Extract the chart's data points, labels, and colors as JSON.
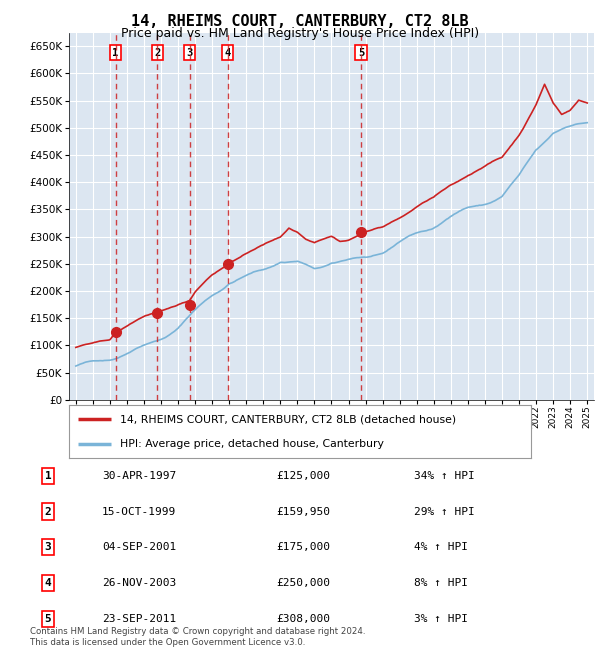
{
  "title": "14, RHEIMS COURT, CANTERBURY, CT2 8LB",
  "subtitle": "Price paid vs. HM Land Registry's House Price Index (HPI)",
  "ylim": [
    0,
    675000
  ],
  "yticks": [
    0,
    50000,
    100000,
    150000,
    200000,
    250000,
    300000,
    350000,
    400000,
    450000,
    500000,
    550000,
    600000,
    650000
  ],
  "plot_bg_color": "#dce6f1",
  "grid_color": "#ffffff",
  "sale_dates_x": [
    1997.33,
    1999.79,
    2001.67,
    2003.9,
    2011.73
  ],
  "sale_prices_y": [
    125000,
    159950,
    175000,
    250000,
    308000
  ],
  "sale_labels": [
    "1",
    "2",
    "3",
    "4",
    "5"
  ],
  "legend_line1": "14, RHEIMS COURT, CANTERBURY, CT2 8LB (detached house)",
  "legend_line2": "HPI: Average price, detached house, Canterbury",
  "table_data": [
    [
      "1",
      "30-APR-1997",
      "£125,000",
      "34% ↑ HPI"
    ],
    [
      "2",
      "15-OCT-1999",
      "£159,950",
      "29% ↑ HPI"
    ],
    [
      "3",
      "04-SEP-2001",
      "£175,000",
      "4% ↑ HPI"
    ],
    [
      "4",
      "26-NOV-2003",
      "£250,000",
      "8% ↑ HPI"
    ],
    [
      "5",
      "23-SEP-2011",
      "£308,000",
      "3% ↑ HPI"
    ]
  ],
  "footnote": "Contains HM Land Registry data © Crown copyright and database right 2024.\nThis data is licensed under the Open Government Licence v3.0.",
  "hpi_color": "#7ab4d8",
  "price_color": "#cc2222",
  "sale_marker_color": "#cc2222",
  "vline_color": "#cc2222",
  "title_fontsize": 11,
  "subtitle_fontsize": 9
}
